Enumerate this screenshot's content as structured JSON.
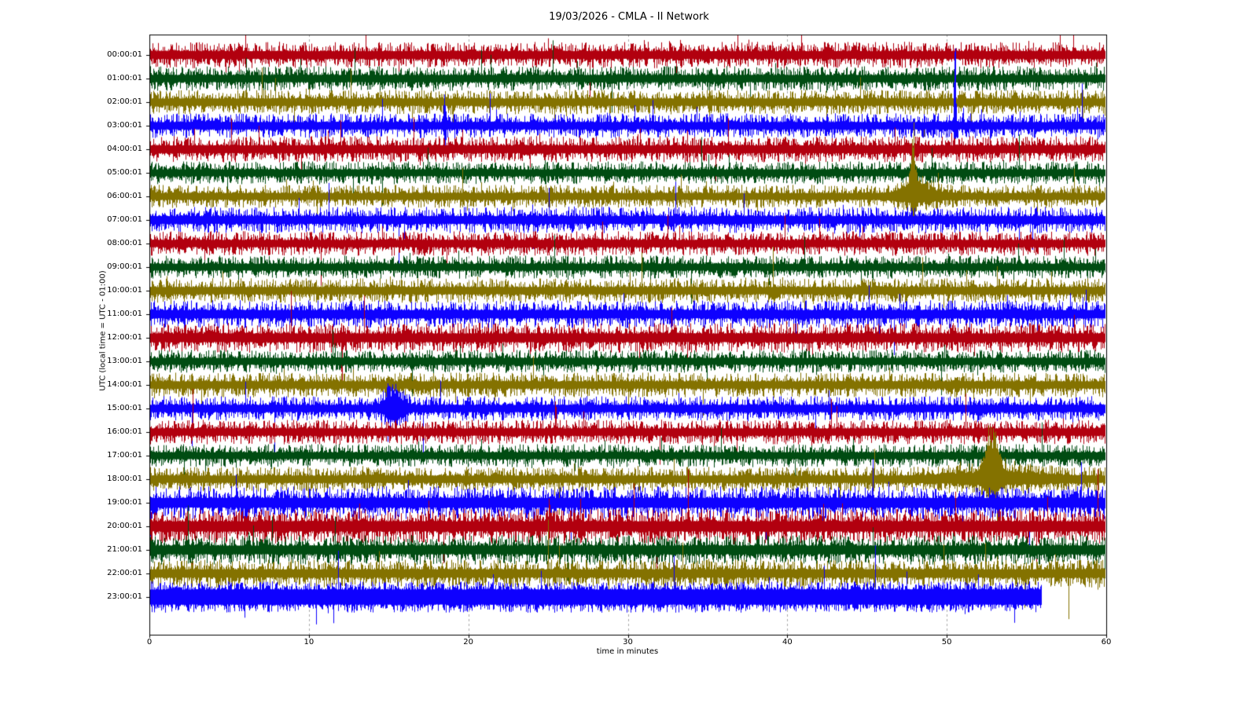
{
  "chart_data": {
    "type": "line",
    "subtype": "seismogram-helicorder-dayplot",
    "title": "19/03/2026 - CMLA - II Network",
    "date": "19/03/2026",
    "station": "CMLA",
    "network": "II",
    "xlabel": "time in minutes",
    "ylabel": "UTC (local time = UTC - 01:00)",
    "xlim": [
      0,
      60
    ],
    "x_ticks": [
      0,
      10,
      20,
      30,
      40,
      50,
      60
    ],
    "grid": "vertical dashed gray lines at 10-minute ticks",
    "legend_position": "none",
    "rows_per_day": 24,
    "minutes_per_row": 60,
    "color_cycle": [
      "#B2000F",
      "#004C12",
      "#847200",
      "#0E01FF"
    ],
    "rows": [
      {
        "label": "00:00:01",
        "color": "#B2000F",
        "color_name": "red",
        "amplitude": 16,
        "start_min": 0,
        "end_min": 60
      },
      {
        "label": "01:00:01",
        "color": "#004C12",
        "color_name": "green",
        "amplitude": 15,
        "start_min": 0,
        "end_min": 60
      },
      {
        "label": "02:00:01",
        "color": "#847200",
        "color_name": "olive",
        "amplitude": 15,
        "start_min": 0,
        "end_min": 60
      },
      {
        "label": "03:00:01",
        "color": "#0E01FF",
        "color_name": "blue",
        "amplitude": 15,
        "start_min": 0,
        "end_min": 60
      },
      {
        "label": "04:00:01",
        "color": "#B2000F",
        "color_name": "red",
        "amplitude": 16,
        "start_min": 0,
        "end_min": 60
      },
      {
        "label": "05:00:01",
        "color": "#004C12",
        "color_name": "green",
        "amplitude": 14,
        "start_min": 0,
        "end_min": 60
      },
      {
        "label": "06:00:01",
        "color": "#847200",
        "color_name": "olive",
        "amplitude": 14,
        "start_min": 0,
        "end_min": 60
      },
      {
        "label": "07:00:01",
        "color": "#0E01FF",
        "color_name": "blue",
        "amplitude": 16,
        "start_min": 0,
        "end_min": 60
      },
      {
        "label": "08:00:01",
        "color": "#B2000F",
        "color_name": "red",
        "amplitude": 15,
        "start_min": 0,
        "end_min": 60
      },
      {
        "label": "09:00:01",
        "color": "#004C12",
        "color_name": "green",
        "amplitude": 14,
        "start_min": 0,
        "end_min": 60
      },
      {
        "label": "10:00:01",
        "color": "#847200",
        "color_name": "olive",
        "amplitude": 15,
        "start_min": 0,
        "end_min": 60
      },
      {
        "label": "11:00:01",
        "color": "#0E01FF",
        "color_name": "blue",
        "amplitude": 17,
        "start_min": 0,
        "end_min": 60
      },
      {
        "label": "12:00:01",
        "color": "#B2000F",
        "color_name": "red",
        "amplitude": 18,
        "start_min": 0,
        "end_min": 60
      },
      {
        "label": "13:00:01",
        "color": "#004C12",
        "color_name": "green",
        "amplitude": 14,
        "start_min": 0,
        "end_min": 60
      },
      {
        "label": "14:00:01",
        "color": "#847200",
        "color_name": "olive",
        "amplitude": 15,
        "start_min": 0,
        "end_min": 60
      },
      {
        "label": "15:00:01",
        "color": "#0E01FF",
        "color_name": "blue",
        "amplitude": 15,
        "start_min": 0,
        "end_min": 60
      },
      {
        "label": "16:00:01",
        "color": "#B2000F",
        "color_name": "red",
        "amplitude": 15,
        "start_min": 0,
        "end_min": 60
      },
      {
        "label": "17:00:01",
        "color": "#004C12",
        "color_name": "green",
        "amplitude": 14,
        "start_min": 0,
        "end_min": 60
      },
      {
        "label": "18:00:01",
        "color": "#847200",
        "color_name": "olive",
        "amplitude": 15,
        "start_min": 0,
        "end_min": 60
      },
      {
        "label": "19:00:01",
        "color": "#0E01FF",
        "color_name": "blue",
        "amplitude": 20,
        "start_min": 0,
        "end_min": 60
      },
      {
        "label": "20:00:01",
        "color": "#B2000F",
        "color_name": "red",
        "amplitude": 21,
        "start_min": 0,
        "end_min": 60
      },
      {
        "label": "21:00:01",
        "color": "#004C12",
        "color_name": "green",
        "amplitude": 18,
        "start_min": 0,
        "end_min": 60
      },
      {
        "label": "22:00:01",
        "color": "#847200",
        "color_name": "olive",
        "amplitude": 17,
        "start_min": 0,
        "end_min": 60
      },
      {
        "label": "23:00:01",
        "color": "#0E01FF",
        "color_name": "blue",
        "amplitude": 19,
        "floor": 0.5,
        "start_min": 0,
        "end_min": 55.9
      }
    ],
    "events": [
      {
        "row": 3,
        "minute": 50.5,
        "sigma": 0.05,
        "up": 120,
        "down": 28,
        "note": "tall narrow blue spike reaching top rows"
      },
      {
        "row": 3,
        "minute": 18.5,
        "sigma": 0.05,
        "up": 48,
        "down": 16
      },
      {
        "row": 6,
        "minute": 47.9,
        "sigma": 0.12,
        "up": 78,
        "down": 22,
        "note": "olive burst into rows above"
      },
      {
        "row": 6,
        "minute": 48.2,
        "sigma": 0.9,
        "up": 16,
        "down": 8
      },
      {
        "row": 15,
        "minute": 15.3,
        "sigma": 0.45,
        "up": 30,
        "down": 14,
        "note": "blue amplitude burst"
      },
      {
        "row": 18,
        "minute": 52.8,
        "sigma": 0.35,
        "up": 62,
        "down": 16,
        "note": "olive spike cluster"
      },
      {
        "row": 18,
        "minute": 53.0,
        "sigma": 2.2,
        "up": 10,
        "down": 5
      }
    ]
  }
}
